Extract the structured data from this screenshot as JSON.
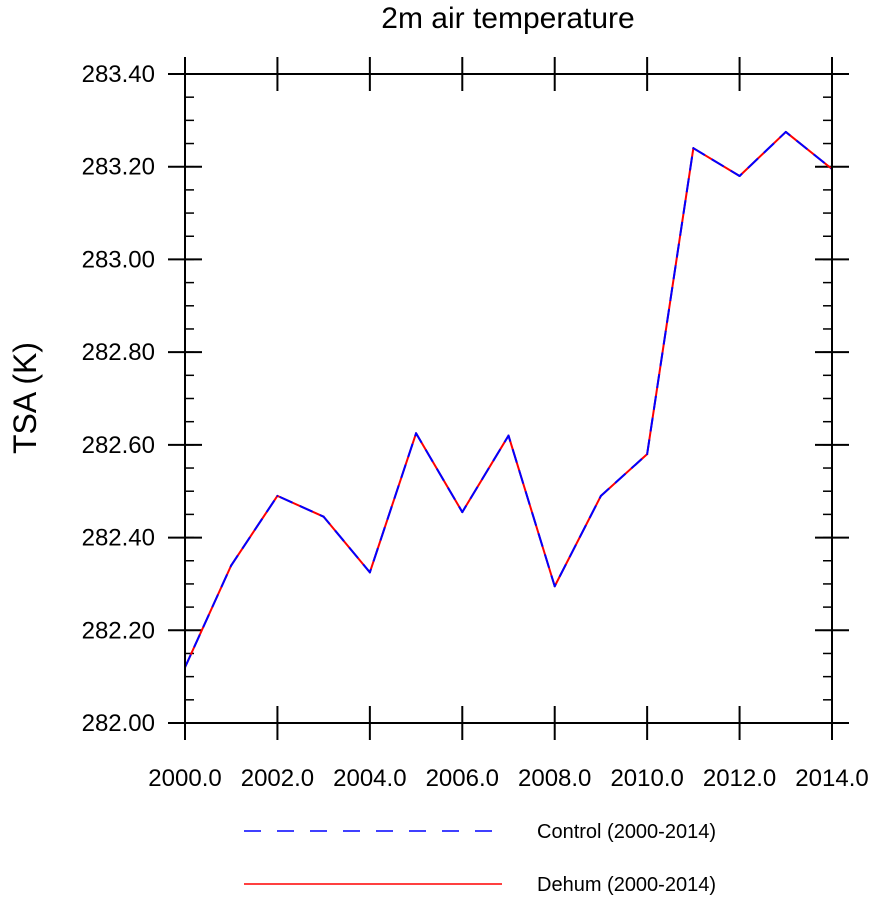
{
  "chart_data": {
    "type": "line",
    "title": "2m air temperature",
    "xlabel": "",
    "ylabel": "TSA  (K)",
    "x": [
      2000,
      2001,
      2002,
      2003,
      2004,
      2005,
      2006,
      2007,
      2008,
      2009,
      2010,
      2011,
      2012,
      2013,
      2014
    ],
    "xlim": [
      2000,
      2014
    ],
    "ylim": [
      282.0,
      283.4
    ],
    "x_ticks": [
      2000,
      2002,
      2004,
      2006,
      2008,
      2010,
      2012,
      2014
    ],
    "x_tick_labels": [
      "2000.0",
      "2002.0",
      "2004.0",
      "2006.0",
      "2008.0",
      "2010.0",
      "2012.0",
      "2014.0"
    ],
    "y_ticks": [
      282.0,
      282.2,
      282.4,
      282.6,
      282.8,
      283.0,
      283.2,
      283.4
    ],
    "y_tick_labels": [
      "282.00",
      "282.20",
      "282.40",
      "282.60",
      "282.80",
      "283.00",
      "283.20",
      "283.40"
    ],
    "grid": false,
    "legend_position": "bottom",
    "series": [
      {
        "name": "Control (2000-2014)",
        "color": "#0000ff",
        "dash": "dashed",
        "values": [
          282.12,
          282.34,
          282.49,
          282.445,
          282.325,
          282.625,
          282.455,
          282.62,
          282.295,
          282.49,
          282.58,
          283.24,
          283.18,
          283.275,
          283.195
        ]
      },
      {
        "name": "Dehum (2000-2014)",
        "color": "#ff0000",
        "dash": "solid",
        "values": [
          282.12,
          282.34,
          282.49,
          282.445,
          282.325,
          282.625,
          282.455,
          282.62,
          282.295,
          282.49,
          282.58,
          283.24,
          283.18,
          283.275,
          283.195
        ]
      }
    ]
  }
}
